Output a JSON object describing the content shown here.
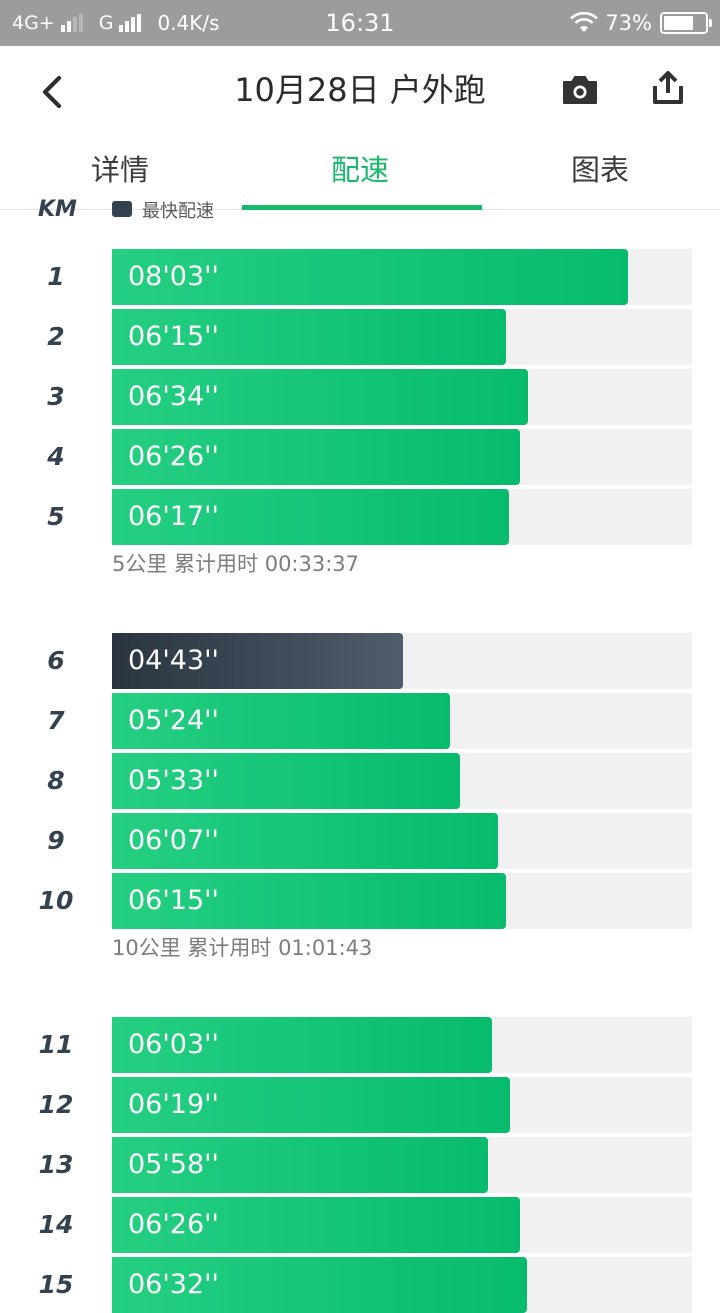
{
  "status_bar": {
    "network_1": "4G+",
    "network_2": "G",
    "speed": "0.4K/s",
    "time": "16:31",
    "battery": "73%",
    "battery_level": 0.73
  },
  "header": {
    "title": "10月28日 户外跑",
    "back_icon": "chevron-left-icon",
    "camera_icon": "camera-icon",
    "share_icon": "share-icon"
  },
  "tabs": [
    {
      "label": "详情",
      "active": false
    },
    {
      "label": "配速",
      "active": true
    },
    {
      "label": "图表",
      "active": false
    }
  ],
  "legend": {
    "unit": "KM",
    "fastest_label": "最快配速"
  },
  "colors": {
    "accent": "#19b96b",
    "bar": "#07bb6d",
    "fastest_bar": "#34414f",
    "track": "#f1f1f1"
  },
  "rows": [
    {
      "km": "1",
      "pace": "08'03''",
      "fill": 0.89
    },
    {
      "km": "2",
      "pace": "06'15''",
      "fill": 0.68
    },
    {
      "km": "3",
      "pace": "06'34''",
      "fill": 0.717
    },
    {
      "km": "4",
      "pace": "06'26''",
      "fill": 0.703
    },
    {
      "km": "5",
      "pace": "06'17''",
      "fill": 0.684
    },
    {
      "km": "6",
      "pace": "04'43''",
      "fill": 0.502,
      "fastest": true
    },
    {
      "km": "7",
      "pace": "05'24''",
      "fill": 0.582
    },
    {
      "km": "8",
      "pace": "05'33''",
      "fill": 0.6
    },
    {
      "km": "9",
      "pace": "06'07''",
      "fill": 0.665
    },
    {
      "km": "10",
      "pace": "06'15''",
      "fill": 0.68
    },
    {
      "km": "11",
      "pace": "06'03''",
      "fill": 0.656
    },
    {
      "km": "12",
      "pace": "06'19''",
      "fill": 0.687
    },
    {
      "km": "13",
      "pace": "05'58''",
      "fill": 0.648
    },
    {
      "km": "14",
      "pace": "06'26''",
      "fill": 0.703
    },
    {
      "km": "15",
      "pace": "06'32''",
      "fill": 0.715
    }
  ],
  "summaries": [
    {
      "after_km": "5",
      "text": "5公里 累计用时 00:33:37"
    },
    {
      "after_km": "10",
      "text": "10公里 累计用时 01:01:43"
    }
  ]
}
